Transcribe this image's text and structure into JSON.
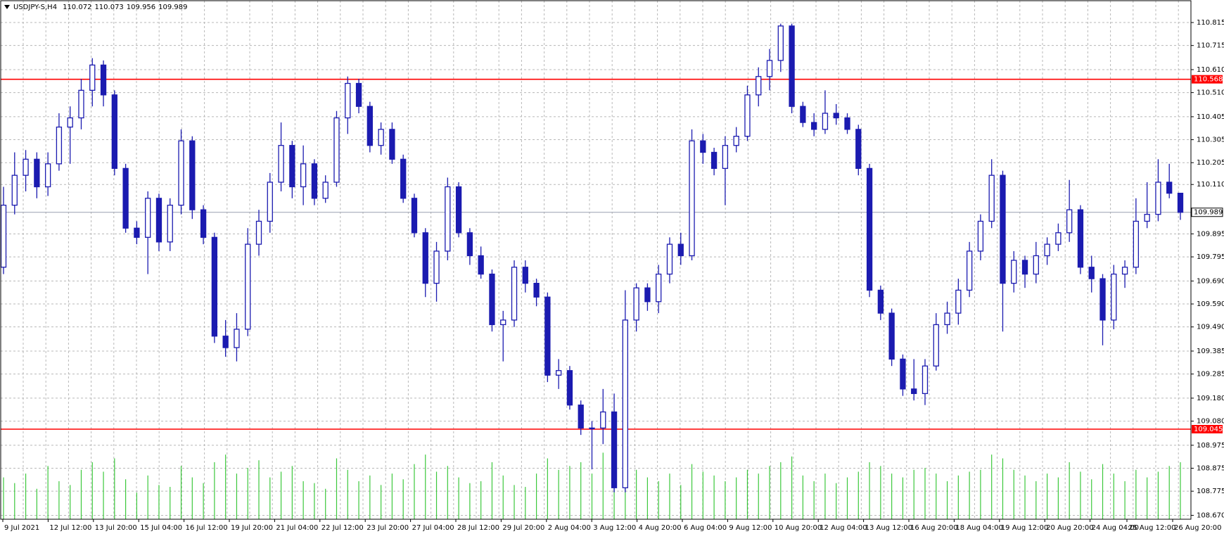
{
  "chart_data": {
    "type": "candlestick",
    "title": "USDJPY-S,H4",
    "up_color": "#ffffff",
    "down_color": "#1b1bb0",
    "line_color": "#1b1bb0",
    "volume_color": "#3cc83c",
    "grid": true,
    "ylim": [
      108.653,
      110.91
    ],
    "yticks": [
      110.815,
      110.715,
      {
        "value": 110.61,
        "label": "110.610"
      },
      {
        "value": 110.51,
        "label": "110.510"
      },
      110.405,
      110.305,
      110.205,
      {
        "value": 110.11,
        "label": "110.110"
      },
      109.895,
      109.795,
      {
        "value": 109.69,
        "label": "109.690"
      },
      {
        "value": 109.59,
        "label": "109.590"
      },
      {
        "value": 109.49,
        "label": "109.490"
      },
      109.385,
      109.285,
      {
        "value": 109.18,
        "label": "109.180"
      },
      {
        "value": 109.08,
        "label": "109.080"
      },
      108.975,
      108.875,
      108.775,
      {
        "value": 108.67,
        "label": "108.670"
      }
    ],
    "levels": [
      {
        "value": 110.568,
        "color": "#ff0000"
      },
      {
        "value": 109.045,
        "color": "#ff0000"
      }
    ],
    "x_labels": [
      "9 Jul 2021",
      "12 Jul 12:00",
      "13 Jul 20:00",
      "15 Jul 04:00",
      "16 Jul 12:00",
      "19 Jul 20:00",
      "21 Jul 04:00",
      "22 Jul 12:00",
      "23 Jul 20:00",
      "27 Jul 04:00",
      "28 Jul 12:00",
      "29 Jul 20:00",
      "2 Aug 04:00",
      "3 Aug 12:00",
      "4 Aug 20:00",
      "6 Aug 04:00",
      "9 Aug 12:00",
      "10 Aug 20:00",
      "12 Aug 04:00",
      "13 Aug 12:00",
      "16 Aug 20:00",
      "18 Aug 04:00",
      "19 Aug 12:00",
      "20 Aug 20:00",
      "24 Aug 04:00",
      "25 Aug 12:00",
      "26 Aug 20:00"
    ],
    "ohlc": [
      [
        109.75,
        110.1,
        109.72,
        110.02
      ],
      [
        110.02,
        110.25,
        109.98,
        110.15
      ],
      [
        110.15,
        110.26,
        110.08,
        110.22
      ],
      [
        110.22,
        110.25,
        110.05,
        110.1
      ],
      [
        110.1,
        110.25,
        110.06,
        110.2
      ],
      [
        110.2,
        110.42,
        110.17,
        110.36
      ],
      [
        110.36,
        110.45,
        110.2,
        110.4
      ],
      [
        110.4,
        110.57,
        110.35,
        110.52
      ],
      [
        110.52,
        110.66,
        110.45,
        110.63
      ],
      [
        110.63,
        110.65,
        110.45,
        110.5
      ],
      [
        110.5,
        110.52,
        110.15,
        110.18
      ],
      [
        110.18,
        110.2,
        109.9,
        109.92
      ],
      [
        109.92,
        109.95,
        109.85,
        109.88
      ],
      [
        109.88,
        110.08,
        109.72,
        110.05
      ],
      [
        110.05,
        110.07,
        109.82,
        109.86
      ],
      [
        109.86,
        110.05,
        109.82,
        110.02
      ],
      [
        110.02,
        110.35,
        109.98,
        110.3
      ],
      [
        110.3,
        110.32,
        109.96,
        110.0
      ],
      [
        110.0,
        110.02,
        109.85,
        109.88
      ],
      [
        109.88,
        109.9,
        109.42,
        109.45
      ],
      [
        109.45,
        109.52,
        109.36,
        109.4
      ],
      [
        109.4,
        109.55,
        109.34,
        109.48
      ],
      [
        109.48,
        109.92,
        109.45,
        109.85
      ],
      [
        109.85,
        110.0,
        109.8,
        109.95
      ],
      [
        109.95,
        110.16,
        109.9,
        110.12
      ],
      [
        110.12,
        110.38,
        110.08,
        110.28
      ],
      [
        110.28,
        110.3,
        110.05,
        110.1
      ],
      [
        110.1,
        110.28,
        110.02,
        110.2
      ],
      [
        110.2,
        110.22,
        110.02,
        110.05
      ],
      [
        110.05,
        110.15,
        110.03,
        110.12
      ],
      [
        110.12,
        110.43,
        110.1,
        110.4
      ],
      [
        110.4,
        110.58,
        110.33,
        110.55
      ],
      [
        110.55,
        110.57,
        110.42,
        110.45
      ],
      [
        110.45,
        110.47,
        110.25,
        110.28
      ],
      [
        110.28,
        110.38,
        110.24,
        110.35
      ],
      [
        110.35,
        110.38,
        110.2,
        110.22
      ],
      [
        110.22,
        110.24,
        110.03,
        110.05
      ],
      [
        110.05,
        110.07,
        109.88,
        109.9
      ],
      [
        109.9,
        109.92,
        109.62,
        109.68
      ],
      [
        109.68,
        109.86,
        109.6,
        109.82
      ],
      [
        109.82,
        110.14,
        109.78,
        110.1
      ],
      [
        110.1,
        110.12,
        109.88,
        109.9
      ],
      [
        109.9,
        109.92,
        109.76,
        109.8
      ],
      [
        109.8,
        109.84,
        109.7,
        109.72
      ],
      [
        109.72,
        109.74,
        109.47,
        109.5
      ],
      [
        109.5,
        109.56,
        109.34,
        109.52
      ],
      [
        109.52,
        109.78,
        109.49,
        109.75
      ],
      [
        109.75,
        109.78,
        109.64,
        109.68
      ],
      [
        109.68,
        109.7,
        109.58,
        109.62
      ],
      [
        109.62,
        109.64,
        109.25,
        109.28
      ],
      [
        109.28,
        109.35,
        109.22,
        109.3
      ],
      [
        109.3,
        109.32,
        109.13,
        109.15
      ],
      [
        109.15,
        109.17,
        109.02,
        109.05
      ],
      [
        109.05,
        109.08,
        108.87,
        109.05
      ],
      [
        109.05,
        109.22,
        108.98,
        109.12
      ],
      [
        109.12,
        109.2,
        108.77,
        108.79
      ],
      [
        108.79,
        109.65,
        108.77,
        109.52
      ],
      [
        109.52,
        109.68,
        109.47,
        109.66
      ],
      [
        109.66,
        109.68,
        109.56,
        109.6
      ],
      [
        109.6,
        109.76,
        109.55,
        109.72
      ],
      [
        109.72,
        109.88,
        109.68,
        109.85
      ],
      [
        109.85,
        109.9,
        109.76,
        109.8
      ],
      [
        109.8,
        110.35,
        109.78,
        110.3
      ],
      [
        110.3,
        110.33,
        110.2,
        110.25
      ],
      [
        110.25,
        110.27,
        110.15,
        110.18
      ],
      [
        110.18,
        110.32,
        110.02,
        110.28
      ],
      [
        110.28,
        110.36,
        110.25,
        110.32
      ],
      [
        110.32,
        110.54,
        110.3,
        110.5
      ],
      [
        110.5,
        110.62,
        110.45,
        110.58
      ],
      [
        110.58,
        110.7,
        110.52,
        110.65
      ],
      [
        110.65,
        110.81,
        110.6,
        110.8
      ],
      [
        110.8,
        110.81,
        110.42,
        110.45
      ],
      [
        110.45,
        110.47,
        110.36,
        110.38
      ],
      [
        110.38,
        110.42,
        110.32,
        110.35
      ],
      [
        110.35,
        110.52,
        110.33,
        110.42
      ],
      [
        110.42,
        110.46,
        110.37,
        110.4
      ],
      [
        110.4,
        110.42,
        110.33,
        110.35
      ],
      [
        110.35,
        110.37,
        110.15,
        110.18
      ],
      [
        110.18,
        110.2,
        109.62,
        109.65
      ],
      [
        109.65,
        109.67,
        109.52,
        109.55
      ],
      [
        109.55,
        109.57,
        109.32,
        109.35
      ],
      [
        109.35,
        109.37,
        109.19,
        109.22
      ],
      [
        109.22,
        109.35,
        109.17,
        109.2
      ],
      [
        109.2,
        109.35,
        109.15,
        109.32
      ],
      [
        109.32,
        109.55,
        109.3,
        109.5
      ],
      [
        109.5,
        109.6,
        109.46,
        109.55
      ],
      [
        109.55,
        109.7,
        109.5,
        109.65
      ],
      [
        109.65,
        109.86,
        109.62,
        109.82
      ],
      [
        109.82,
        109.98,
        109.78,
        109.95
      ],
      [
        109.95,
        110.22,
        109.92,
        110.15
      ],
      [
        110.15,
        110.17,
        109.47,
        109.68
      ],
      [
        109.68,
        109.82,
        109.64,
        109.78
      ],
      [
        109.78,
        109.8,
        109.66,
        109.72
      ],
      [
        109.72,
        109.86,
        109.68,
        109.8
      ],
      [
        109.8,
        109.88,
        109.76,
        109.85
      ],
      [
        109.85,
        109.94,
        109.82,
        109.9
      ],
      [
        109.9,
        110.13,
        109.86,
        110.0
      ],
      [
        110.0,
        110.02,
        109.72,
        109.75
      ],
      [
        109.75,
        109.8,
        109.64,
        109.7
      ],
      [
        109.7,
        109.72,
        109.41,
        109.52
      ],
      [
        109.52,
        109.76,
        109.48,
        109.72
      ],
      [
        109.72,
        109.78,
        109.66,
        109.75
      ],
      [
        109.75,
        110.05,
        109.72,
        109.95
      ],
      [
        109.95,
        110.12,
        109.92,
        109.98
      ],
      [
        109.98,
        110.22,
        109.95,
        110.12
      ],
      [
        110.12,
        110.2,
        110.05,
        110.072
      ],
      [
        110.072,
        110.073,
        109.956,
        109.989
      ]
    ],
    "volume": [
      110,
      95,
      120,
      80,
      140,
      100,
      90,
      130,
      150,
      125,
      160,
      105,
      70,
      115,
      90,
      85,
      140,
      110,
      95,
      150,
      170,
      120,
      135,
      155,
      110,
      125,
      140,
      100,
      95,
      80,
      160,
      130,
      100,
      115,
      90,
      120,
      105,
      145,
      170,
      125,
      140,
      110,
      95,
      100,
      150,
      115,
      90,
      85,
      120,
      160,
      130,
      140,
      150,
      120,
      175,
      185,
      165,
      130,
      110,
      100,
      120,
      90,
      145,
      125,
      115,
      100,
      110,
      130,
      120,
      140,
      150,
      165,
      115,
      100,
      120,
      95,
      110,
      125,
      150,
      140,
      120,
      110,
      130,
      135,
      120,
      100,
      115,
      125,
      130,
      170,
      160,
      130,
      115,
      100,
      120,
      110,
      150,
      125,
      105,
      145,
      120,
      100,
      130,
      110,
      125,
      140,
      150
    ]
  }
}
